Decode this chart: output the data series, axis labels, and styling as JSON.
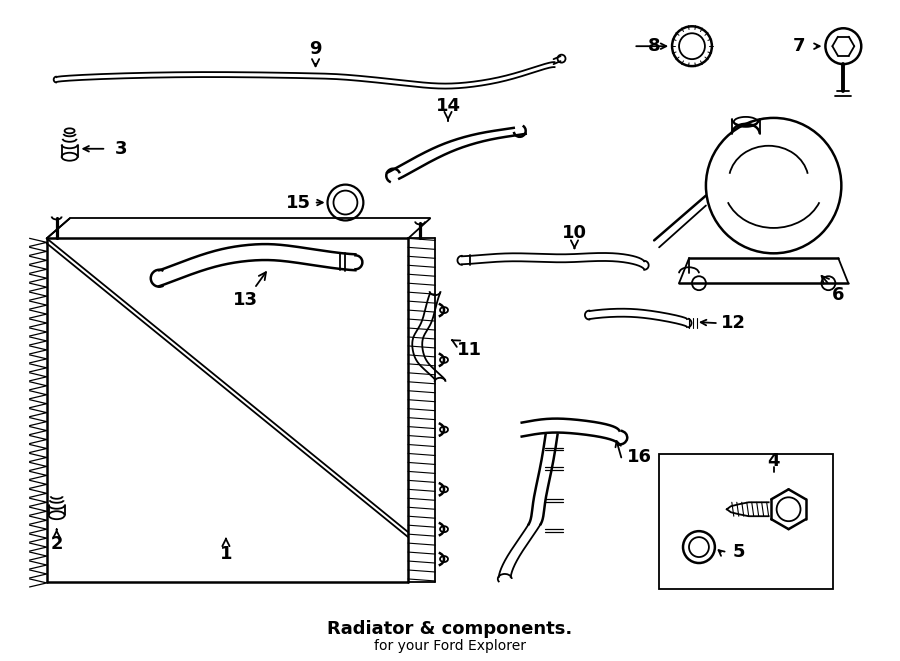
{
  "title": "Radiator & components.",
  "subtitle": "for your Ford Explorer",
  "bg_color": "#ffffff",
  "line_color": "#000000",
  "text_color": "#000000",
  "fig_width": 9.0,
  "fig_height": 6.61,
  "dpi": 100
}
